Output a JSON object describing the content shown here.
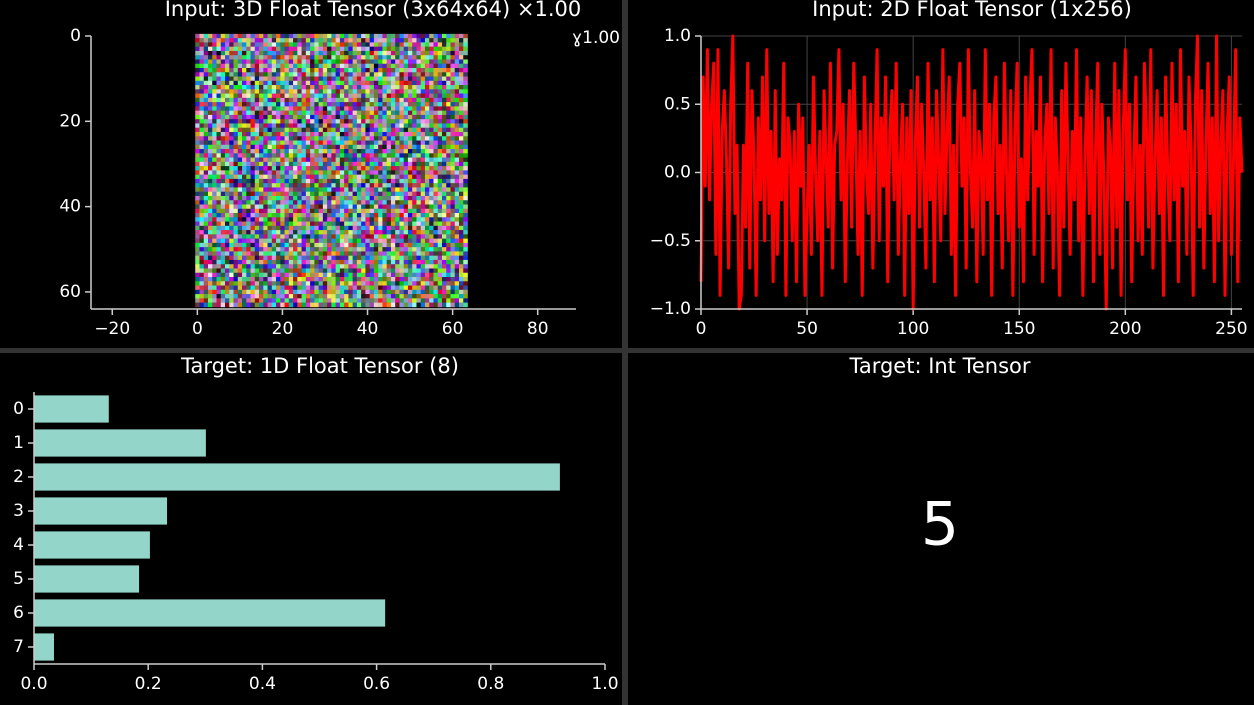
{
  "chart_data": [
    {
      "type": "image",
      "title": "Input: 3D Float Tensor (3x64x64) ×1.00",
      "annotation": "ɣ1.00",
      "extent": [
        -0.5,
        63.5,
        63.5,
        -0.5
      ],
      "xlim": [
        -25,
        89
      ],
      "ylim": [
        64,
        0
      ],
      "xticks": [
        {
          "value": -20,
          "label": "−20"
        },
        0,
        20,
        40,
        60,
        80
      ],
      "yticks": [
        0,
        20,
        40,
        60
      ]
    },
    {
      "type": "line",
      "title": "Input: 2D Float Tensor (1x256)",
      "color": "#ff0000",
      "grid": true,
      "xlim": [
        0,
        255
      ],
      "ylim": [
        -1,
        1
      ],
      "xticks": [
        0,
        50,
        100,
        150,
        200,
        250
      ],
      "yticks": [
        {
          "value": 1,
          "label": "1.0"
        },
        {
          "value": 0.5,
          "label": "0.5"
        },
        {
          "value": 0,
          "label": "0.0"
        },
        {
          "value": -0.5,
          "label": "−0.5"
        },
        {
          "value": -1,
          "label": "−1.0"
        }
      ],
      "x": [
        0,
        1,
        2,
        3,
        4,
        5,
        6,
        7,
        8,
        9,
        10,
        11,
        12,
        13,
        14,
        15,
        16,
        17,
        18,
        19,
        20,
        21,
        22,
        23,
        24,
        25,
        26,
        27,
        28,
        29,
        30,
        31,
        32,
        33,
        34,
        35,
        36,
        37,
        38,
        39,
        40,
        41,
        42,
        43,
        44,
        45,
        46,
        47,
        48,
        49,
        50,
        51,
        52,
        53,
        54,
        55,
        56,
        57,
        58,
        59,
        60,
        61,
        62,
        63,
        64,
        65,
        66,
        67,
        68,
        69,
        70,
        71,
        72,
        73,
        74,
        75,
        76,
        77,
        78,
        79,
        80,
        81,
        82,
        83,
        84,
        85,
        86,
        87,
        88,
        89,
        90,
        91,
        92,
        93,
        94,
        95,
        96,
        97,
        98,
        99,
        100,
        101,
        102,
        103,
        104,
        105,
        106,
        107,
        108,
        109,
        110,
        111,
        112,
        113,
        114,
        115,
        116,
        117,
        118,
        119,
        120,
        121,
        122,
        123,
        124,
        125,
        126,
        127,
        128,
        129,
        130,
        131,
        132,
        133,
        134,
        135,
        136,
        137,
        138,
        139,
        140,
        141,
        142,
        143,
        144,
        145,
        146,
        147,
        148,
        149,
        150,
        151,
        152,
        153,
        154,
        155,
        156,
        157,
        158,
        159,
        160,
        161,
        162,
        163,
        164,
        165,
        166,
        167,
        168,
        169,
        170,
        171,
        172,
        173,
        174,
        175,
        176,
        177,
        178,
        179,
        180,
        181,
        182,
        183,
        184,
        185,
        186,
        187,
        188,
        189,
        190,
        191,
        192,
        193,
        194,
        195,
        196,
        197,
        198,
        199,
        200,
        201,
        202,
        203,
        204,
        205,
        206,
        207,
        208,
        209,
        210,
        211,
        212,
        213,
        214,
        215,
        216,
        217,
        218,
        219,
        220,
        221,
        222,
        223,
        224,
        225,
        226,
        227,
        228,
        229,
        230,
        231,
        232,
        233,
        234,
        235,
        236,
        237,
        238,
        239,
        240,
        241,
        242,
        243,
        244,
        245,
        246,
        247,
        248,
        249,
        250,
        251,
        252,
        253,
        254,
        255
      ],
      "values": [
        -0.8,
        0.7,
        -0.1,
        0.9,
        -0.2,
        0.5,
        0.8,
        -0.6,
        0.9,
        -0.9,
        0.3,
        0.6,
        0.1,
        -0.7,
        0.5,
        1.0,
        -0.3,
        0.2,
        -1.0,
        -0.9,
        0.2,
        -0.4,
        0.8,
        -0.7,
        0.6,
        0.1,
        -0.9,
        0.4,
        -0.2,
        0.7,
        -0.5,
        0.9,
        -0.3,
        0.3,
        -0.8,
        0.6,
        -0.6,
        0.1,
        -0.2,
        0.8,
        -0.9,
        0.4,
        0.2,
        -0.5,
        0.3,
        -0.8,
        0.5,
        -0.1,
        0.4,
        -0.9,
        -0.3,
        0.2,
        -0.6,
        0.7,
        0.0,
        -0.5,
        0.3,
        -0.9,
        0.6,
        0.1,
        -0.4,
        0.8,
        -0.7,
        0.2,
        0.3,
        0.9,
        -0.2,
        0.5,
        -0.8,
        0.1,
        0.6,
        -0.4,
        0.8,
        0.2,
        -0.6,
        0.3,
        -0.9,
        0.7,
        0.0,
        -0.3,
        0.5,
        -0.7,
        0.2,
        0.9,
        -0.5,
        0.4,
        -0.1,
        0.7,
        -0.8,
        0.3,
        0.6,
        -0.2,
        0.8,
        -0.6,
        0.1,
        0.5,
        -0.9,
        0.4,
        -0.3,
        0.6,
        -1.0,
        0.2,
        0.7,
        -0.4,
        0.5,
        0.0,
        -0.7,
        0.8,
        -0.2,
        0.4,
        -0.8,
        0.6,
        0.1,
        -0.5,
        0.9,
        -0.3,
        0.3,
        0.7,
        -0.6,
        0.2,
        -0.9,
        0.5,
        0.8,
        -0.1,
        0.4,
        -0.7,
        0.9,
        0.0,
        -0.4,
        0.6,
        -0.8,
        0.3,
        0.1,
        -0.6,
        0.9,
        -0.2,
        0.5,
        -0.9,
        0.4,
        0.7,
        -0.3,
        0.2,
        -0.7,
        0.8,
        0.0,
        -0.5,
        0.6,
        -0.9,
        0.3,
        0.8,
        -0.4,
        0.1,
        -0.8,
        0.7,
        -0.2,
        0.5,
        0.9,
        -0.6,
        0.3,
        -0.1,
        0.7,
        -0.8,
        0.2,
        0.5,
        -0.3,
        0.9,
        -0.7,
        0.4,
        0.0,
        -0.9,
        0.6,
        -0.4,
        0.8,
        0.1,
        -0.6,
        0.3,
        -0.2,
        0.9,
        -0.5,
        0.4,
        -0.9,
        0.1,
        0.7,
        -0.3,
        0.6,
        -0.8,
        0.2,
        0.8,
        -0.6,
        0.5,
        -0.1,
        -1.0,
        0.4,
        0.2,
        -0.7,
        0.8,
        -0.4,
        0.6,
        -0.9,
        0.3,
        0.9,
        -0.2,
        0.5,
        -0.8,
        0.1,
        0.7,
        -0.5,
        0.2,
        -0.6,
        0.8,
        0.3,
        -0.4,
        0.9,
        -0.7,
        0.1,
        0.6,
        -0.3,
        0.4,
        -0.9,
        0.7,
        0.0,
        -0.5,
        0.8,
        -0.2,
        0.5,
        -0.8,
        0.9,
        -0.1,
        0.3,
        -0.6,
        0.7,
        0.2,
        -0.9,
        0.5,
        1.0,
        -0.4,
        0.6,
        -0.7,
        0.2,
        0.8,
        -0.3,
        0.4,
        -0.8,
        1.0,
        -0.5,
        0.2,
        0.6,
        -0.9,
        0.3,
        0.7,
        -0.6,
        0.1,
        0.9,
        -0.8,
        0.4,
        0.0
      ]
    },
    {
      "type": "barh",
      "title": "Target: 1D Float Tensor (8)",
      "color": "#93d5c9",
      "categories": [
        "0",
        "1",
        "2",
        "3",
        "4",
        "5",
        "6",
        "7"
      ],
      "values": [
        0.131,
        0.301,
        0.921,
        0.233,
        0.203,
        0.184,
        0.615,
        0.035
      ],
      "xlim": [
        0,
        1
      ],
      "xticks": [
        {
          "value": 0,
          "label": "0.0"
        },
        {
          "value": 0.2,
          "label": "0.2"
        },
        {
          "value": 0.4,
          "label": "0.4"
        },
        {
          "value": 0.6,
          "label": "0.6"
        },
        {
          "value": 0.8,
          "label": "0.8"
        },
        {
          "value": 1,
          "label": "1.0"
        }
      ]
    },
    {
      "type": "number",
      "title": "Target: Int Tensor",
      "value": 5
    }
  ]
}
